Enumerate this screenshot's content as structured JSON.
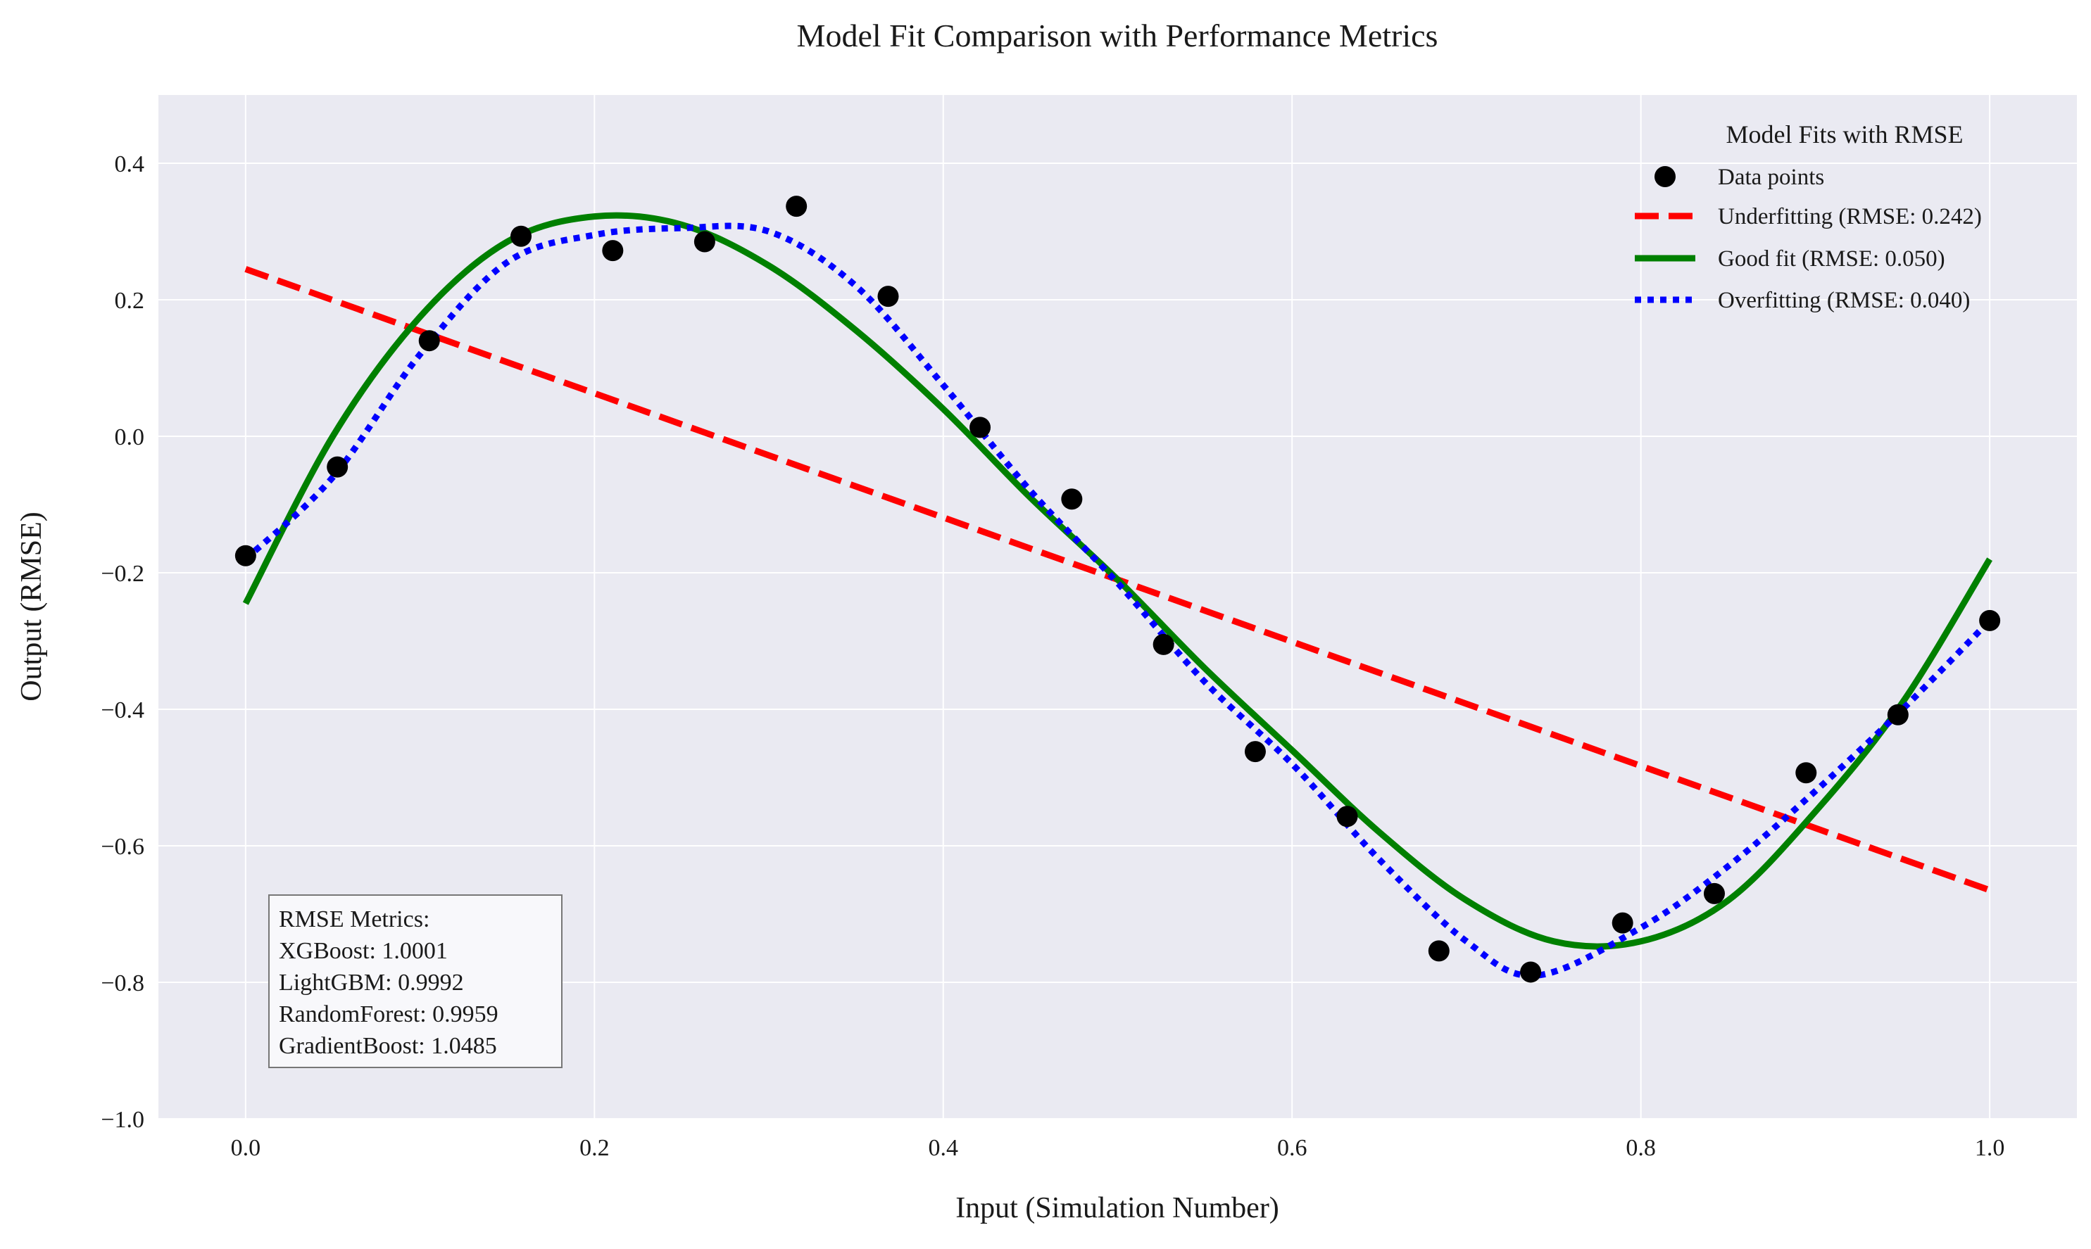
{
  "chart_data": {
    "type": "line",
    "title": "Model Fit Comparison with Performance Metrics",
    "xlabel": "Input (Simulation Number)",
    "ylabel": "Output (RMSE)",
    "xlim": [
      -0.05,
      1.05
    ],
    "ylim": [
      -1.0,
      0.5
    ],
    "xticks": [
      0.0,
      0.2,
      0.4,
      0.6,
      0.8,
      1.0
    ],
    "xtick_labels": [
      "0.0",
      "0.2",
      "0.4",
      "0.6",
      "0.8",
      "1.0"
    ],
    "yticks": [
      -1.0,
      -0.8,
      -0.6,
      -0.4,
      -0.2,
      0.0,
      0.2,
      0.4
    ],
    "ytick_labels": [
      "−1.0",
      "−0.8",
      "−0.6",
      "−0.4",
      "−0.2",
      "0.0",
      "0.2",
      "0.4"
    ],
    "grid": true,
    "legend_placement": "top-right",
    "legend_title": "Model Fits with RMSE",
    "scatter": {
      "name": "Data points",
      "color": "#000000",
      "x": [
        0.0,
        0.0526,
        0.1053,
        0.1579,
        0.2105,
        0.2632,
        0.3158,
        0.3684,
        0.4211,
        0.4737,
        0.5263,
        0.5789,
        0.6316,
        0.6842,
        0.7368,
        0.7895,
        0.8421,
        0.8947,
        0.9474,
        1.0
      ],
      "y": [
        -0.175,
        -0.045,
        0.14,
        0.293,
        0.272,
        0.285,
        0.337,
        0.205,
        0.013,
        -0.092,
        -0.305,
        -0.462,
        -0.557,
        -0.754,
        -0.785,
        -0.713,
        -0.67,
        -0.493,
        -0.408,
        -0.27
      ]
    },
    "series": [
      {
        "name": "Underfitting (RMSE: 0.242)",
        "color": "#ff0000",
        "style": "dashed",
        "x": [
          0.0,
          1.0
        ],
        "y": [
          0.245,
          -0.665
        ]
      },
      {
        "name": "Good fit (RMSE: 0.050)",
        "color": "#008000",
        "style": "solid",
        "x": [
          0.0,
          0.05,
          0.1,
          0.15,
          0.2,
          0.25,
          0.3,
          0.35,
          0.4,
          0.45,
          0.5,
          0.55,
          0.6,
          0.65,
          0.7,
          0.75,
          0.8,
          0.85,
          0.9,
          0.95,
          1.0
        ],
        "y": [
          -0.245,
          0.0,
          0.175,
          0.285,
          0.322,
          0.31,
          0.25,
          0.155,
          0.04,
          -0.09,
          -0.21,
          -0.34,
          -0.46,
          -0.58,
          -0.68,
          -0.74,
          -0.74,
          -0.68,
          -0.55,
          -0.39,
          -0.18
        ]
      },
      {
        "name": "Overfitting (RMSE: 0.040)",
        "color": "#0000ff",
        "style": "dotted",
        "x": [
          0.0,
          0.05,
          0.1,
          0.15,
          0.2,
          0.25,
          0.3,
          0.35,
          0.4,
          0.45,
          0.5,
          0.55,
          0.6,
          0.65,
          0.7,
          0.74,
          0.8,
          0.85,
          0.9,
          0.95,
          1.0
        ],
        "y": [
          -0.18,
          -0.06,
          0.12,
          0.255,
          0.295,
          0.305,
          0.3,
          0.22,
          0.075,
          -0.08,
          -0.215,
          -0.36,
          -0.48,
          -0.62,
          -0.74,
          -0.79,
          -0.72,
          -0.63,
          -0.52,
          -0.4,
          -0.27
        ]
      }
    ],
    "metrics_box": {
      "lines": [
        "RMSE Metrics:",
        "XGBoost: 1.0001",
        "LightGBM: 0.9992",
        "RandomForest: 0.9959",
        "GradientBoost: 1.0485"
      ]
    },
    "legend_items": [
      "Data points",
      "Underfitting (RMSE: 0.242)",
      "Good fit (RMSE: 0.050)",
      "Overfitting (RMSE: 0.040)"
    ],
    "colors": {
      "plot_background": "#eaeaf2",
      "grid": "#ffffff"
    }
  }
}
